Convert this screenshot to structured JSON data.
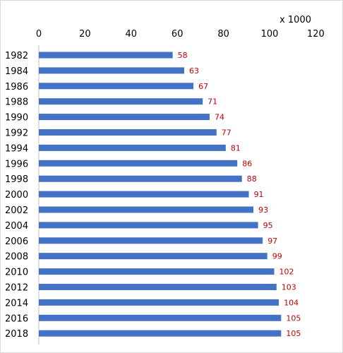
{
  "chart_data": {
    "type": "bar",
    "orientation": "horizontal",
    "x_axis_position": "top",
    "unit_label": "x 1000",
    "categories": [
      "1982",
      "1984",
      "1986",
      "1988",
      "1990",
      "1992",
      "1994",
      "1996",
      "1998",
      "2000",
      "2002",
      "2004",
      "2006",
      "2008",
      "2010",
      "2012",
      "2014",
      "2016",
      "2018"
    ],
    "values": [
      58,
      63,
      67,
      71,
      74,
      77,
      81,
      86,
      88,
      91,
      93,
      95,
      97,
      99,
      102,
      103,
      104,
      105,
      105
    ],
    "data_labels": [
      "58",
      "63",
      "67",
      "71",
      "74",
      "77",
      "81",
      "86",
      "88",
      "91",
      "93",
      "95",
      "97",
      "99",
      "102",
      "103",
      "104",
      "105",
      "105"
    ],
    "xlim": [
      0,
      120
    ],
    "x_ticks": [
      "0",
      "20",
      "40",
      "60",
      "80",
      "100",
      "120"
    ],
    "grid": false,
    "colors": {
      "bar": "#4472c4",
      "data_label": "#c00000",
      "axis_line": "#bfbfbf"
    }
  }
}
